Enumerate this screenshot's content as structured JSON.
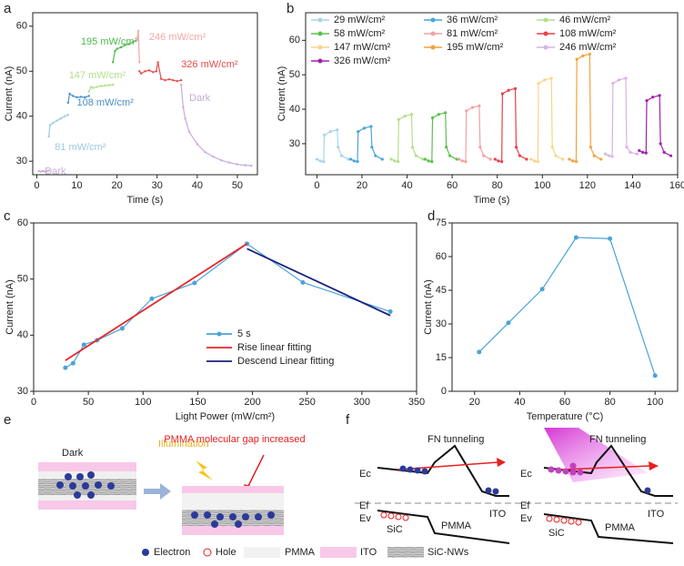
{
  "panel_labels": [
    "a",
    "b",
    "c",
    "d",
    "e",
    "f"
  ],
  "chart_data": [
    {
      "type": "line",
      "xlabel": "Time (s)",
      "ylabel": "Current (nA)",
      "xlim": [
        -1,
        55
      ],
      "ylim": [
        27,
        63
      ],
      "xticks": [
        0,
        10,
        20,
        30,
        40,
        50
      ],
      "yticks": [
        30,
        40,
        50,
        60
      ],
      "series": [
        {
          "name": "Dark",
          "color": "#c9a9dc",
          "marker": "circle",
          "x": [
            0.5,
            1,
            1.5,
            2,
            2.5,
            3
          ],
          "values": [
            27.8,
            27.7,
            27.8,
            27.7,
            27.8,
            27.9
          ]
        },
        {
          "name": "81 mW/cm²",
          "color": "#9ecae1",
          "marker": "circle",
          "x": [
            3,
            3.3,
            4,
            5,
            6,
            7,
            7.8
          ],
          "values": [
            35.5,
            38,
            38.5,
            39,
            39.5,
            40,
            40.3
          ]
        },
        {
          "name": "108 mW/cm²",
          "color": "#4a8fc7",
          "marker": "circle",
          "x": [
            7.8,
            8.2,
            9,
            10,
            11,
            12,
            13
          ],
          "values": [
            43,
            45,
            44.5,
            44.2,
            44.3,
            44.2,
            44.5
          ]
        },
        {
          "name": "147 mW/cm²",
          "color": "#b2df8a",
          "marker": "circle",
          "x": [
            13,
            13.5,
            14,
            15,
            16,
            17,
            18,
            19
          ],
          "values": [
            45.5,
            46.5,
            46.3,
            46.5,
            46.7,
            46.8,
            46.9,
            47
          ]
        },
        {
          "name": "195 mW/cm²",
          "color": "#4cb84a",
          "marker": "circle",
          "x": [
            19,
            19.5,
            20,
            21,
            22,
            23,
            24,
            25
          ],
          "values": [
            52,
            54.5,
            55,
            55.3,
            55.8,
            56,
            56.5,
            57
          ]
        },
        {
          "name": "246 mW/cm²",
          "color": "#f4a6a6",
          "marker": "circle",
          "x": [
            25,
            25.3,
            25.6
          ],
          "values": [
            57,
            59,
            52
          ]
        },
        {
          "name": "326 mW/cm²",
          "color": "#e84a4a",
          "marker": "circle",
          "x": [
            25.6,
            26,
            27,
            28,
            29,
            29.8,
            30.2,
            31,
            32,
            33,
            34,
            35,
            36
          ],
          "values": [
            50,
            49.5,
            50,
            50.2,
            49.8,
            50,
            52,
            48.3,
            48,
            48.2,
            48,
            47.8,
            48
          ]
        },
        {
          "name": "Dark",
          "color": "#c9a9dc",
          "marker": "circle",
          "x": [
            36,
            36.5,
            37,
            38,
            40,
            42,
            44,
            46,
            48,
            50,
            52,
            53.5
          ],
          "values": [
            47,
            42,
            39.5,
            36.5,
            33.8,
            32,
            31,
            30.2,
            29.7,
            29.3,
            29.1,
            29
          ]
        }
      ]
    },
    {
      "type": "line",
      "xlabel": "Time (s)",
      "ylabel": "Current (nA)",
      "xlim": [
        -5,
        160
      ],
      "ylim": [
        21,
        68
      ],
      "xticks": [
        0,
        20,
        40,
        60,
        80,
        100,
        120,
        140,
        160
      ],
      "yticks": [
        30,
        40,
        50,
        60
      ],
      "legend": "top-left",
      "series": [
        {
          "name": "29 mW/cm²",
          "color": "#a9d3ec",
          "marker": "circle",
          "x": [
            0,
            1.5,
            3,
            3.3,
            6,
            9,
            9.4,
            11,
            14
          ],
          "values": [
            25.5,
            25,
            24.8,
            32.5,
            33.5,
            34,
            29,
            26.5,
            25.5
          ]
        },
        {
          "name": "36 mW/cm²",
          "color": "#4aa3d8",
          "marker": "circle",
          "x": [
            15,
            16.5,
            18,
            18.3,
            21,
            24,
            24.4,
            26,
            29
          ],
          "values": [
            25.5,
            25,
            24.8,
            33.5,
            34.5,
            35,
            29,
            26.5,
            25.5
          ]
        },
        {
          "name": "46 mW/cm²",
          "color": "#b2df8a",
          "marker": "circle",
          "x": [
            33,
            34.5,
            36,
            36.3,
            39,
            42,
            42.4,
            44,
            47
          ],
          "values": [
            25.5,
            25,
            24.8,
            37,
            38,
            38.5,
            29,
            26.5,
            25.5
          ]
        },
        {
          "name": "58 mW/cm²",
          "color": "#5cbf4f",
          "marker": "circle",
          "x": [
            48,
            49.5,
            51,
            51.3,
            54,
            57,
            57.4,
            59,
            62
          ],
          "values": [
            25.5,
            25,
            24.8,
            37.5,
            38.5,
            39,
            29,
            26.5,
            25.5
          ]
        },
        {
          "name": "81 mW/cm²",
          "color": "#f4a0a0",
          "marker": "circle",
          "x": [
            63,
            64.5,
            66,
            66.3,
            69,
            72,
            72.4,
            74,
            77
          ],
          "values": [
            25.5,
            25,
            24.8,
            39.5,
            40.5,
            41,
            29,
            26.5,
            25.5
          ]
        },
        {
          "name": "108 mW/cm²",
          "color": "#e8414a",
          "marker": "circle",
          "x": [
            79,
            80.5,
            82,
            82.3,
            85,
            88,
            88.4,
            90,
            93
          ],
          "values": [
            25.5,
            25,
            24.8,
            44.5,
            45.5,
            46,
            29,
            26.5,
            25.5
          ]
        },
        {
          "name": "147 mW/cm²",
          "color": "#f7d58a",
          "marker": "circle",
          "x": [
            95,
            96.5,
            98,
            98.3,
            101,
            104,
            104.4,
            106,
            109
          ],
          "values": [
            25.5,
            25,
            24.8,
            47.5,
            48.5,
            49,
            29,
            26.5,
            25.5
          ]
        },
        {
          "name": "195 mW/cm²",
          "color": "#f5a03a",
          "marker": "circle",
          "x": [
            112,
            113.5,
            115,
            115.3,
            118,
            121,
            121.4,
            123,
            126
          ],
          "values": [
            25.5,
            25,
            24.8,
            54.5,
            55.5,
            56,
            29,
            26.5,
            25.5
          ]
        },
        {
          "name": "246 mW/cm²",
          "color": "#d6b4e0",
          "marker": "circle",
          "x": [
            128,
            129.5,
            131,
            131.3,
            134,
            137,
            137.4,
            139,
            142
          ],
          "values": [
            27,
            26.5,
            26.3,
            47.5,
            48.5,
            49,
            29,
            27.5,
            27
          ]
        },
        {
          "name": "326 mW/cm²",
          "color": "#a020b0",
          "marker": "circle",
          "x": [
            143,
            144.5,
            146,
            146.3,
            149,
            152,
            152.4,
            154,
            157
          ],
          "values": [
            28,
            27.5,
            27.3,
            42.5,
            43.5,
            44,
            30,
            27.5,
            26.5
          ]
        }
      ]
    },
    {
      "type": "line",
      "xlabel": "Light Power (mW/cm²)",
      "ylabel": "Current (nA)",
      "xlim": [
        0,
        350
      ],
      "ylim": [
        30,
        60
      ],
      "xticks": [
        0,
        50,
        100,
        150,
        200,
        250,
        300,
        350
      ],
      "yticks": [
        30,
        40,
        50,
        60
      ],
      "legend": "lower-center",
      "series": [
        {
          "name": "5 s",
          "color": "#4aa3d8",
          "marker": "circle",
          "x": [
            29,
            36,
            46,
            58,
            81,
            108,
            147,
            195,
            246,
            326
          ],
          "values": [
            34.2,
            35,
            38.3,
            39.1,
            41.2,
            46.5,
            49.3,
            56.3,
            49.4,
            44.2
          ]
        },
        {
          "name": "Rise linear fitting",
          "color": "#e8262a",
          "x": [
            29,
            195
          ],
          "values": [
            35.5,
            56.3
          ]
        },
        {
          "name": "Descend Linear fitting",
          "color": "#1a237e",
          "x": [
            195,
            326
          ],
          "values": [
            55.4,
            43.5
          ]
        }
      ]
    },
    {
      "type": "line",
      "xlabel": "Temperature (°C)",
      "ylabel": "Current (nA)",
      "xlim": [
        10,
        110
      ],
      "ylim": [
        0,
        75
      ],
      "xticks": [
        20,
        40,
        60,
        80,
        100
      ],
      "yticks": [
        0,
        15,
        30,
        45,
        60,
        75
      ],
      "series": [
        {
          "color": "#4aa3d8",
          "marker": "circle",
          "x": [
            22,
            35,
            50,
            65,
            80,
            100
          ],
          "values": [
            17.5,
            30.5,
            45.5,
            68.5,
            68,
            7
          ]
        }
      ]
    }
  ],
  "diagram_e": {
    "dark": "Dark",
    "illumination": "Illumination",
    "annotation": "PMMA molecular gap increased",
    "legend": [
      "Electron",
      "Hole",
      "PMMA",
      "ITO",
      "SiC-NWs"
    ]
  },
  "diagram_f": {
    "left": {
      "title": "FN tunneling",
      "ec": "Ec",
      "ef": "Ef",
      "ev": "Ev",
      "sic": "SiC",
      "pmma": "PMMA",
      "ito": "ITO"
    },
    "right": {
      "title": "FN tunneling",
      "ec": "Ec",
      "ef": "Ef",
      "ev": "Ev",
      "sic": "SiC",
      "pmma": "PMMA",
      "ito": "ITO"
    }
  }
}
